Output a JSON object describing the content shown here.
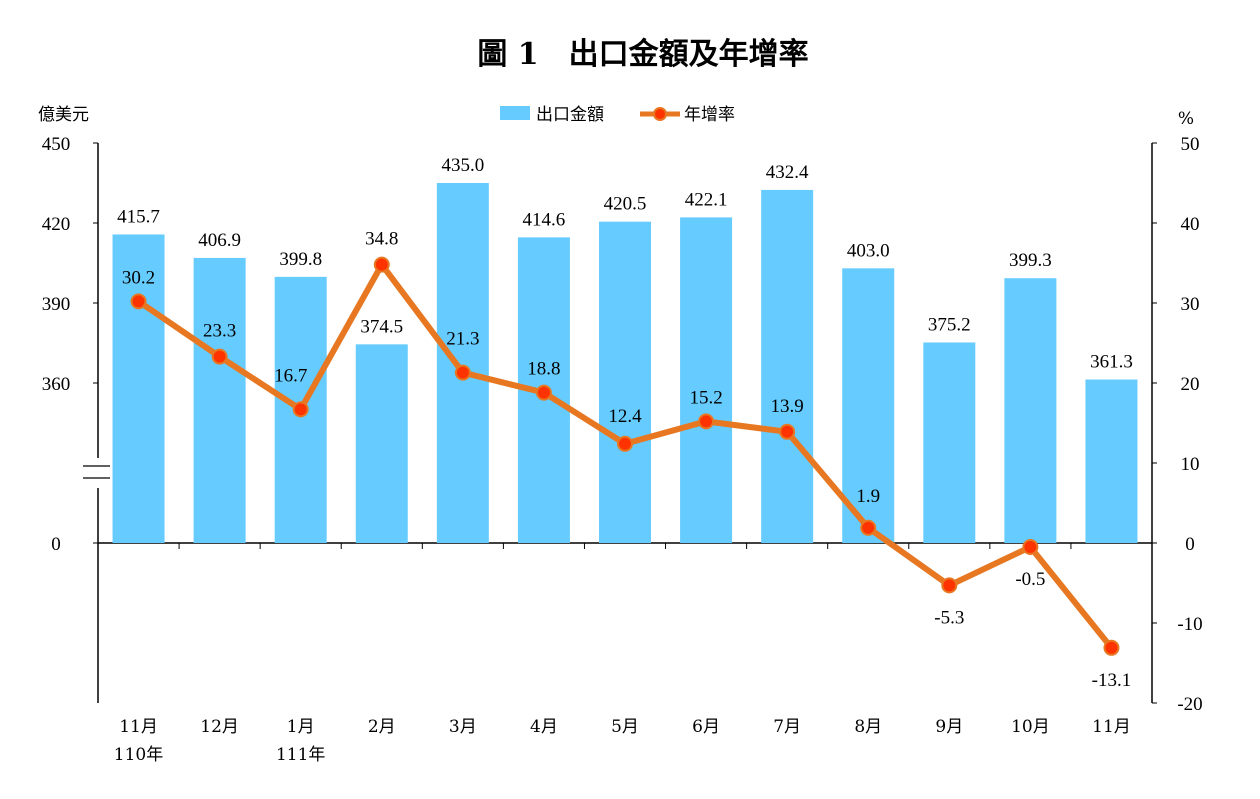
{
  "chart_data": {
    "type": "bar",
    "title": "圖 1　出口金額及年增率",
    "left_unit": "億美元",
    "right_unit": "%",
    "categories": [
      "11月",
      "12月",
      "1月",
      "2月",
      "3月",
      "4月",
      "5月",
      "6月",
      "7月",
      "8月",
      "9月",
      "10月",
      "11月"
    ],
    "category_sublabels": [
      "110年",
      "",
      "111年",
      "",
      "",
      "",
      "",
      "",
      "",
      "",
      "",
      "",
      ""
    ],
    "series": [
      {
        "name": "出口金額",
        "type": "bar",
        "axis": "left",
        "color": "#66CCFF",
        "values": [
          415.7,
          406.9,
          399.8,
          374.5,
          435.0,
          414.6,
          420.5,
          422.1,
          432.4,
          403.0,
          375.2,
          399.3,
          361.3
        ],
        "labels": [
          "415.7",
          "406.9",
          "399.8",
          "374.5",
          "435.0",
          "414.6",
          "420.5",
          "422.1",
          "432.4",
          "403.0",
          "375.2",
          "399.3",
          "361.3"
        ]
      },
      {
        "name": "年增率",
        "type": "line",
        "axis": "right",
        "color": "#E87722",
        "marker_color": "#FF3300",
        "values": [
          30.2,
          23.3,
          16.7,
          34.8,
          21.3,
          18.8,
          12.4,
          15.2,
          13.9,
          1.9,
          -5.3,
          -0.5,
          -13.1
        ],
        "labels": [
          "30.2",
          "23.3",
          "16.7",
          "34.8",
          "21.3",
          "18.8",
          "12.4",
          "15.2",
          "13.9",
          "1.9",
          "-5.3",
          "-0.5",
          "-13.1"
        ]
      }
    ],
    "left_axis": {
      "ticks": [
        "450",
        "420",
        "390",
        "360",
        "0"
      ],
      "tick_values": [
        450,
        420,
        390,
        360,
        0
      ],
      "broken": true,
      "break_from": 0,
      "break_to": 330
    },
    "right_axis": {
      "range": [
        -20,
        50
      ],
      "ticks": [
        "50",
        "40",
        "30",
        "20",
        "10",
        "0",
        "-10",
        "-20"
      ],
      "tick_values": [
        50,
        40,
        30,
        20,
        10,
        0,
        -10,
        -20
      ]
    },
    "legend_placement": "top-center",
    "grid": false
  }
}
